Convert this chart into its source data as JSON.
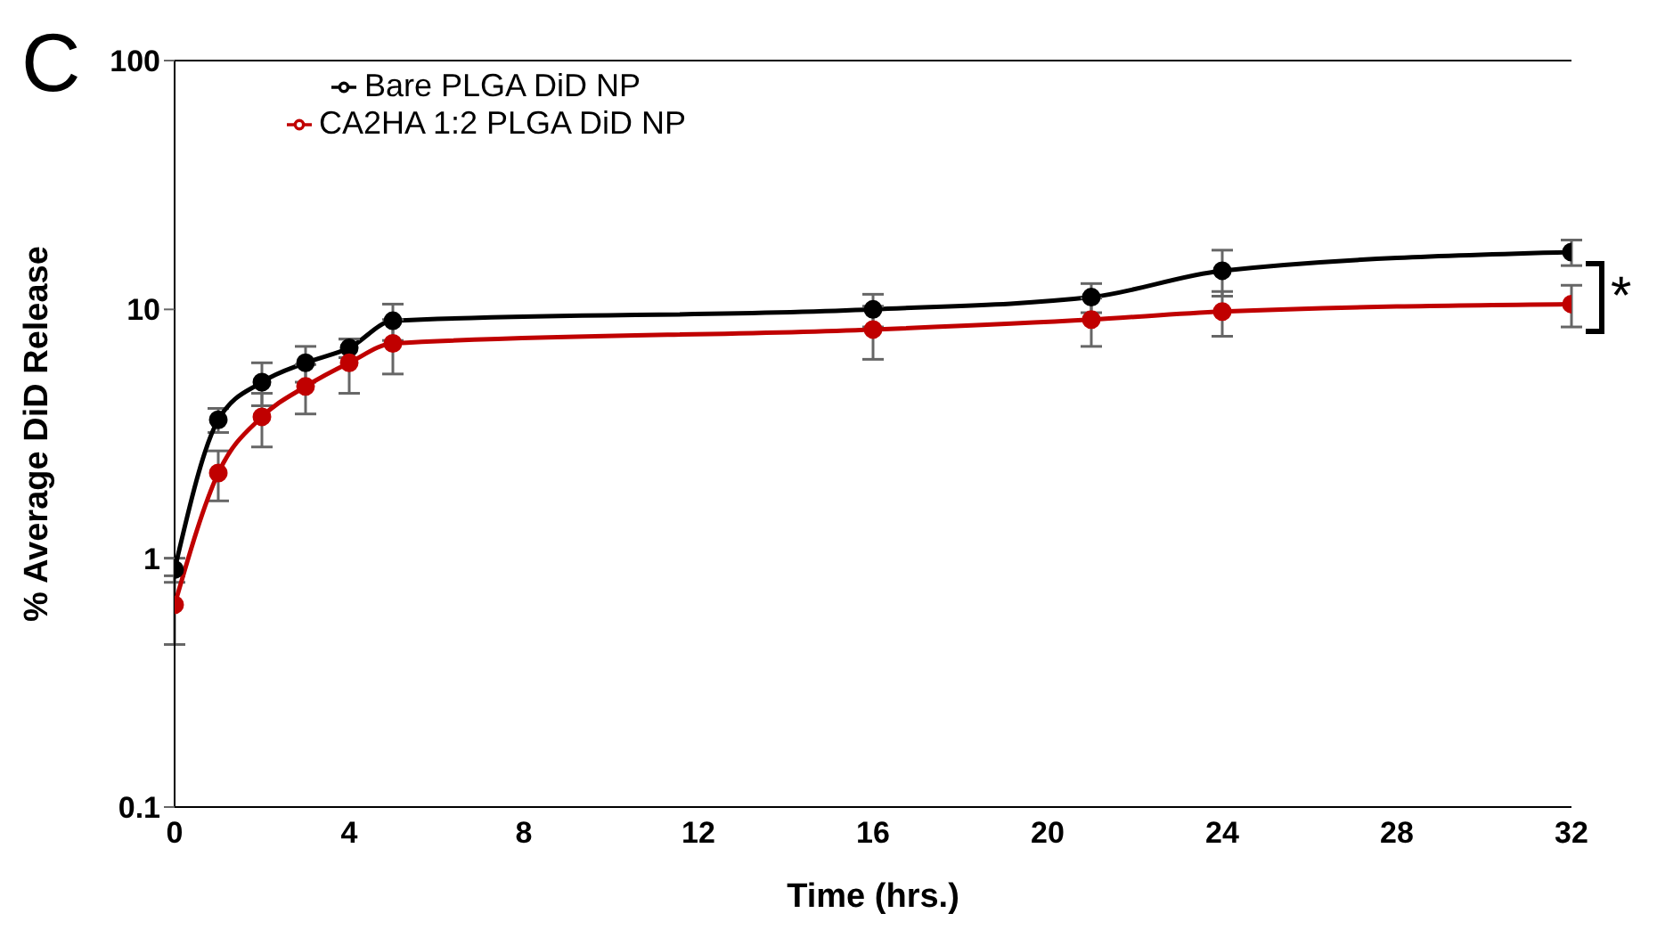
{
  "chart_data": {
    "type": "line",
    "xlabel": "Time (hrs.)",
    "ylabel": "% Average DiD Release",
    "annotations": [
      "C",
      "*"
    ],
    "x": [
      0,
      1,
      2,
      3,
      4,
      5,
      16,
      21,
      24,
      32
    ],
    "series": [
      {
        "name": "Bare PLGA DiD NP",
        "color": "#000000",
        "values": [
          0.9,
          3.6,
          5.1,
          6.1,
          7.0,
          9.0,
          10.0,
          11.2,
          14.3,
          17.0
        ],
        "errors": [
          0.1,
          0.4,
          1.0,
          1.0,
          0.6,
          1.5,
          1.5,
          1.5,
          3,
          2
        ]
      },
      {
        "name": "CA2HA 1:2 PLGA DiD NP",
        "color": "#c00000",
        "values": [
          0.65,
          2.2,
          3.7,
          4.9,
          6.1,
          7.3,
          8.3,
          9.1,
          9.8,
          10.5
        ],
        "errors": [
          0.2,
          0.5,
          0.9,
          1.1,
          1.5,
          1.8,
          2,
          2,
          2,
          2
        ]
      }
    ],
    "xlim": [
      0,
      32
    ],
    "xticks": [
      0,
      4,
      8,
      12,
      16,
      20,
      24,
      28,
      32
    ],
    "ylim": [
      0.1,
      100
    ],
    "yticks": [
      0.1,
      1,
      10,
      100
    ],
    "log": "y",
    "legend": "top left",
    "marker": "circle",
    "line_style": "solid"
  }
}
